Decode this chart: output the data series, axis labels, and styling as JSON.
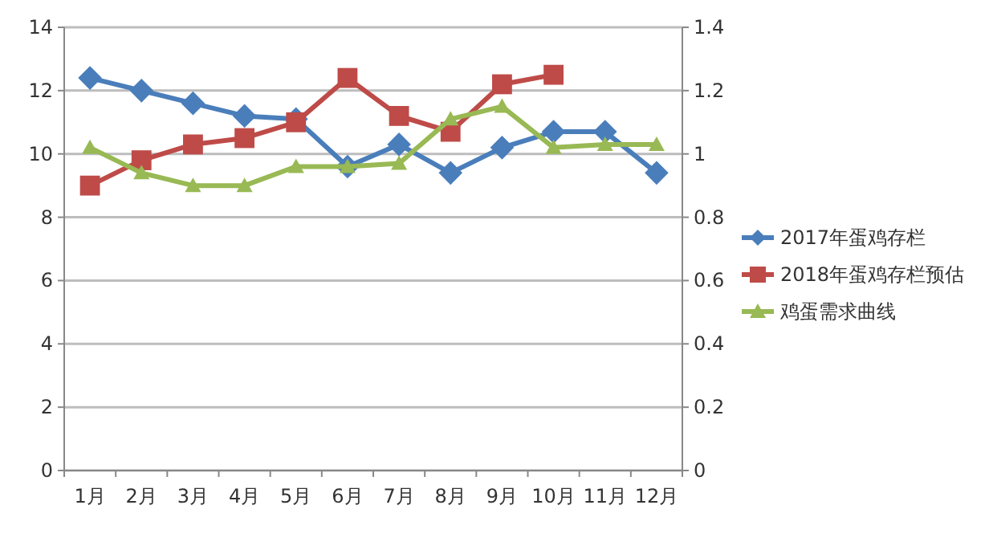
{
  "chart_data": {
    "type": "line",
    "categories": [
      "1月",
      "2月",
      "3月",
      "4月",
      "5月",
      "6月",
      "7月",
      "8月",
      "9月",
      "10月",
      "11月",
      "12月"
    ],
    "series": [
      {
        "name": "2017年蛋鸡存栏",
        "color": "#4a7ebb",
        "marker": "diamond",
        "values": [
          12.4,
          12.0,
          11.6,
          11.2,
          11.1,
          9.6,
          10.3,
          9.4,
          10.2,
          10.7,
          10.7,
          9.4
        ]
      },
      {
        "name": "2018年蛋鸡存栏预估",
        "color": "#be4b48",
        "marker": "square",
        "values": [
          9.0,
          9.8,
          10.3,
          10.5,
          11.0,
          12.4,
          11.2,
          10.7,
          12.2,
          12.5,
          null,
          null
        ]
      },
      {
        "name": "鸡蛋需求曲线",
        "color": "#98b954",
        "marker": "triangle",
        "axis": "y2",
        "values": [
          1.02,
          0.94,
          0.9,
          0.9,
          0.96,
          0.96,
          0.97,
          1.11,
          1.15,
          1.02,
          1.03,
          1.03
        ]
      }
    ],
    "ylim": [
      0,
      14
    ],
    "yticks": [
      0,
      2,
      4,
      6,
      8,
      10,
      12,
      14
    ],
    "y2lim": [
      0,
      1.4
    ],
    "y2ticks": [
      0,
      0.2,
      0.4,
      0.6,
      0.8,
      1,
      1.2,
      1.4
    ],
    "grid": "y",
    "legend": "right"
  }
}
